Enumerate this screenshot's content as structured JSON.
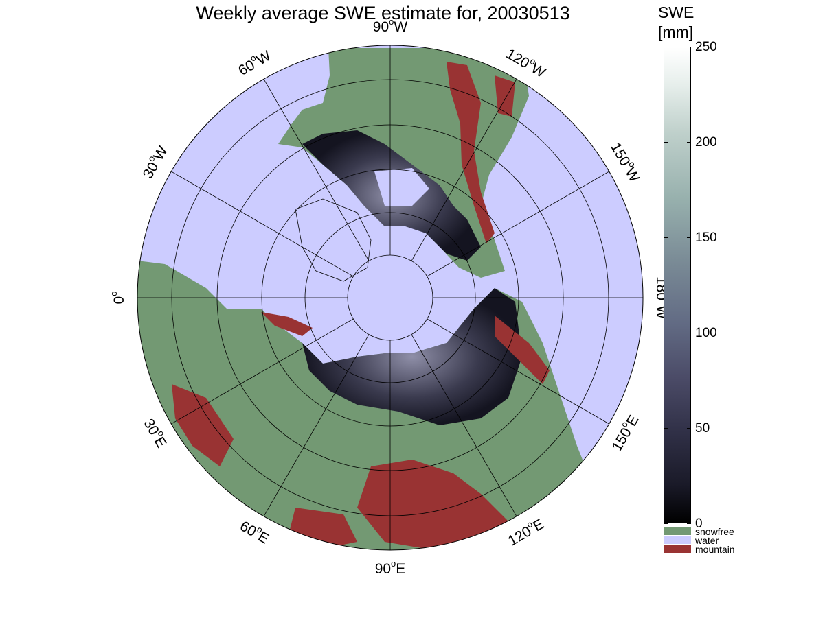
{
  "title": "Weekly average SWE estimate for, 20030513",
  "map": {
    "projection": "north polar stereographic",
    "colors": {
      "water": "#ccccff",
      "snowfree": "#739973",
      "mountain": "#993333",
      "snow_low": "#1a1a26",
      "snow_high": "#8f8fa8"
    },
    "longitude_labels": [
      {
        "deg": "90",
        "hem": "W",
        "name": "lon-90w"
      },
      {
        "deg": "120",
        "hem": "W",
        "name": "lon-120w"
      },
      {
        "deg": "150",
        "hem": "W",
        "name": "lon-150w"
      },
      {
        "deg": "180",
        "hem": "W",
        "name": "lon-180w"
      },
      {
        "deg": "150",
        "hem": "E",
        "name": "lon-150e"
      },
      {
        "deg": "120",
        "hem": "E",
        "name": "lon-120e"
      },
      {
        "deg": "90",
        "hem": "E",
        "name": "lon-90e"
      },
      {
        "deg": "60",
        "hem": "E",
        "name": "lon-60e"
      },
      {
        "deg": "30",
        "hem": "E",
        "name": "lon-30e"
      },
      {
        "deg": "0",
        "hem": "",
        "name": "lon-0"
      },
      {
        "deg": "30",
        "hem": "W",
        "name": "lon-30w"
      },
      {
        "deg": "60",
        "hem": "W",
        "name": "lon-60w"
      }
    ]
  },
  "colorbar": {
    "title_line1": "SWE",
    "title_line2": "[mm]",
    "min": 0,
    "max": 250,
    "ticks": [
      "250",
      "200",
      "150",
      "100",
      "50",
      "0"
    ],
    "tick_values": [
      250,
      200,
      150,
      100,
      50,
      0
    ],
    "categories": [
      {
        "label": "snowfree",
        "color": "#739973"
      },
      {
        "label": "water",
        "color": "#ccccff"
      },
      {
        "label": "mountain",
        "color": "#993333"
      }
    ]
  }
}
